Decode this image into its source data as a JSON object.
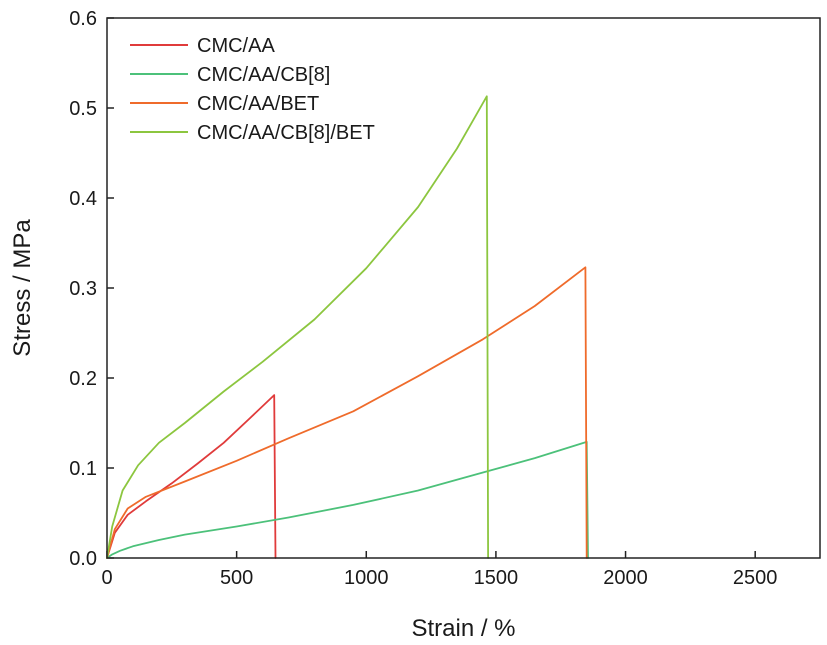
{
  "chart_data": {
    "type": "line",
    "title": "",
    "xlabel": "Strain / %",
    "ylabel": "Stress / MPa",
    "xlim": [
      0,
      2750
    ],
    "ylim": [
      0,
      0.6
    ],
    "xticks": [
      0,
      500,
      1000,
      1500,
      2000,
      2500
    ],
    "yticks": [
      0.0,
      0.1,
      0.2,
      0.3,
      0.4,
      0.5,
      0.6
    ],
    "xtick_labels": [
      "0",
      "500",
      "1000",
      "1500",
      "2000",
      "2500"
    ],
    "ytick_labels": [
      "0.0",
      "0.1",
      "0.2",
      "0.3",
      "0.4",
      "0.5",
      "0.6"
    ],
    "grid": false,
    "legend_position": "top-left",
    "series": [
      {
        "name": "CMC/AA",
        "color": "#e03b3b",
        "x": [
          0,
          30,
          80,
          150,
          250,
          350,
          450,
          550,
          645,
          650
        ],
        "y": [
          0,
          0.028,
          0.048,
          0.063,
          0.083,
          0.105,
          0.128,
          0.155,
          0.181,
          0
        ]
      },
      {
        "name": "CMC/AA/CB[8]",
        "color": "#4cc17a",
        "x": [
          0,
          20,
          50,
          100,
          200,
          300,
          500,
          700,
          950,
          1200,
          1450,
          1650,
          1850,
          1855
        ],
        "y": [
          0,
          0.004,
          0.008,
          0.013,
          0.02,
          0.026,
          0.035,
          0.045,
          0.059,
          0.075,
          0.095,
          0.111,
          0.129,
          0
        ]
      },
      {
        "name": "CMC/AA/BET",
        "color": "#ef6b2b",
        "x": [
          0,
          30,
          80,
          150,
          300,
          500,
          700,
          950,
          1200,
          1450,
          1650,
          1845,
          1850
        ],
        "y": [
          0,
          0.032,
          0.055,
          0.068,
          0.085,
          0.108,
          0.133,
          0.163,
          0.202,
          0.243,
          0.28,
          0.323,
          0
        ]
      },
      {
        "name": "CMC/AA/CB[8]/BET",
        "color": "#8cc63f",
        "x": [
          0,
          20,
          60,
          120,
          200,
          300,
          450,
          600,
          800,
          1000,
          1200,
          1350,
          1465,
          1470
        ],
        "y": [
          0,
          0.035,
          0.075,
          0.103,
          0.128,
          0.15,
          0.185,
          0.218,
          0.265,
          0.322,
          0.39,
          0.455,
          0.513,
          0
        ]
      }
    ]
  }
}
